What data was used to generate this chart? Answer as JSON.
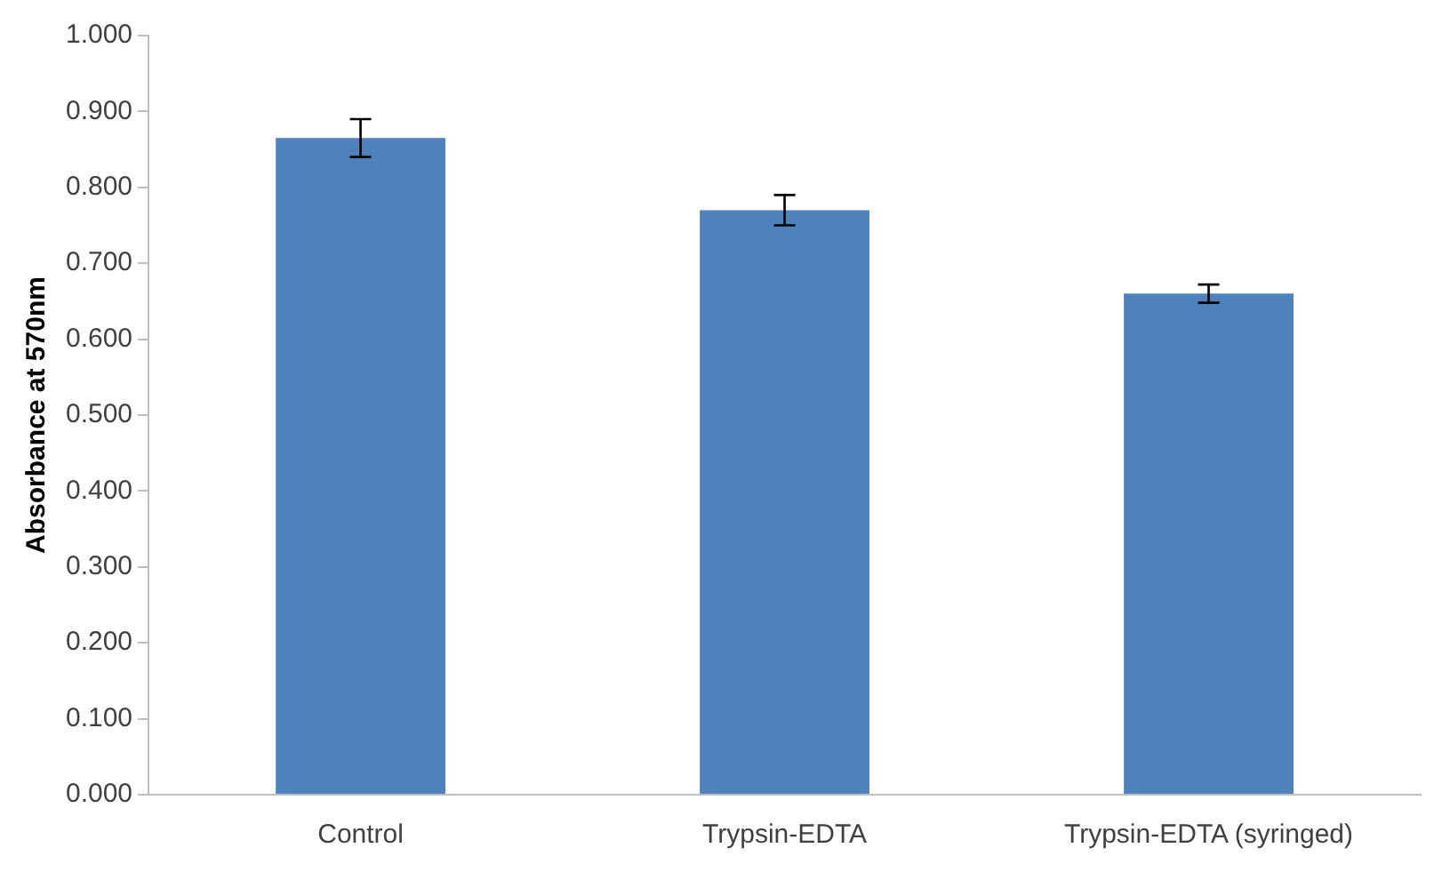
{
  "chart_data": {
    "type": "bar",
    "ylabel": "Absorbance at 570nm",
    "categories": [
      "Control",
      "Trypsin-EDTA",
      "Trypsin-EDTA (syringed)"
    ],
    "values": [
      0.865,
      0.77,
      0.66
    ],
    "errors": [
      0.025,
      0.02,
      0.012
    ],
    "color": "#4f81bd",
    "ylim": [
      0,
      1
    ],
    "yticks": [
      {
        "value": 0,
        "label": "0.000"
      },
      {
        "value": 0.1,
        "label": "0.100"
      },
      {
        "value": 0.2,
        "label": "0.200"
      },
      {
        "value": 0.3,
        "label": "0.300"
      },
      {
        "value": 0.4,
        "label": "0.400"
      },
      {
        "value": 0.5,
        "label": "0.500"
      },
      {
        "value": 0.6,
        "label": "0.600"
      },
      {
        "value": 0.7,
        "label": "0.700"
      },
      {
        "value": 0.8,
        "label": "0.800"
      },
      {
        "value": 0.9,
        "label": "0.900"
      },
      {
        "value": 1,
        "label": "1.000"
      }
    ],
    "grid": false
  }
}
